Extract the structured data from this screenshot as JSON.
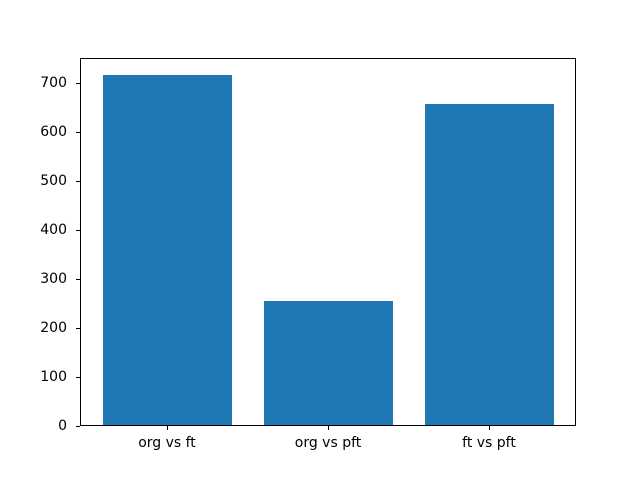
{
  "figure": {
    "background": "#ffffff"
  },
  "chart_data": {
    "type": "bar",
    "title": "",
    "xlabel": "",
    "ylabel": "",
    "categories": [
      "org vs ft",
      "org vs pft",
      "ft vs pft"
    ],
    "values": [
      717,
      255,
      657
    ],
    "yticks": [
      0,
      100,
      200,
      300,
      400,
      500,
      600,
      700
    ],
    "ylim": [
      0,
      752
    ],
    "xlim": [
      -0.54,
      2.54
    ],
    "bar_width": 0.8,
    "bar_color": "#1f77b4",
    "spine_color": "#000000",
    "grid": false,
    "legend": "none"
  }
}
